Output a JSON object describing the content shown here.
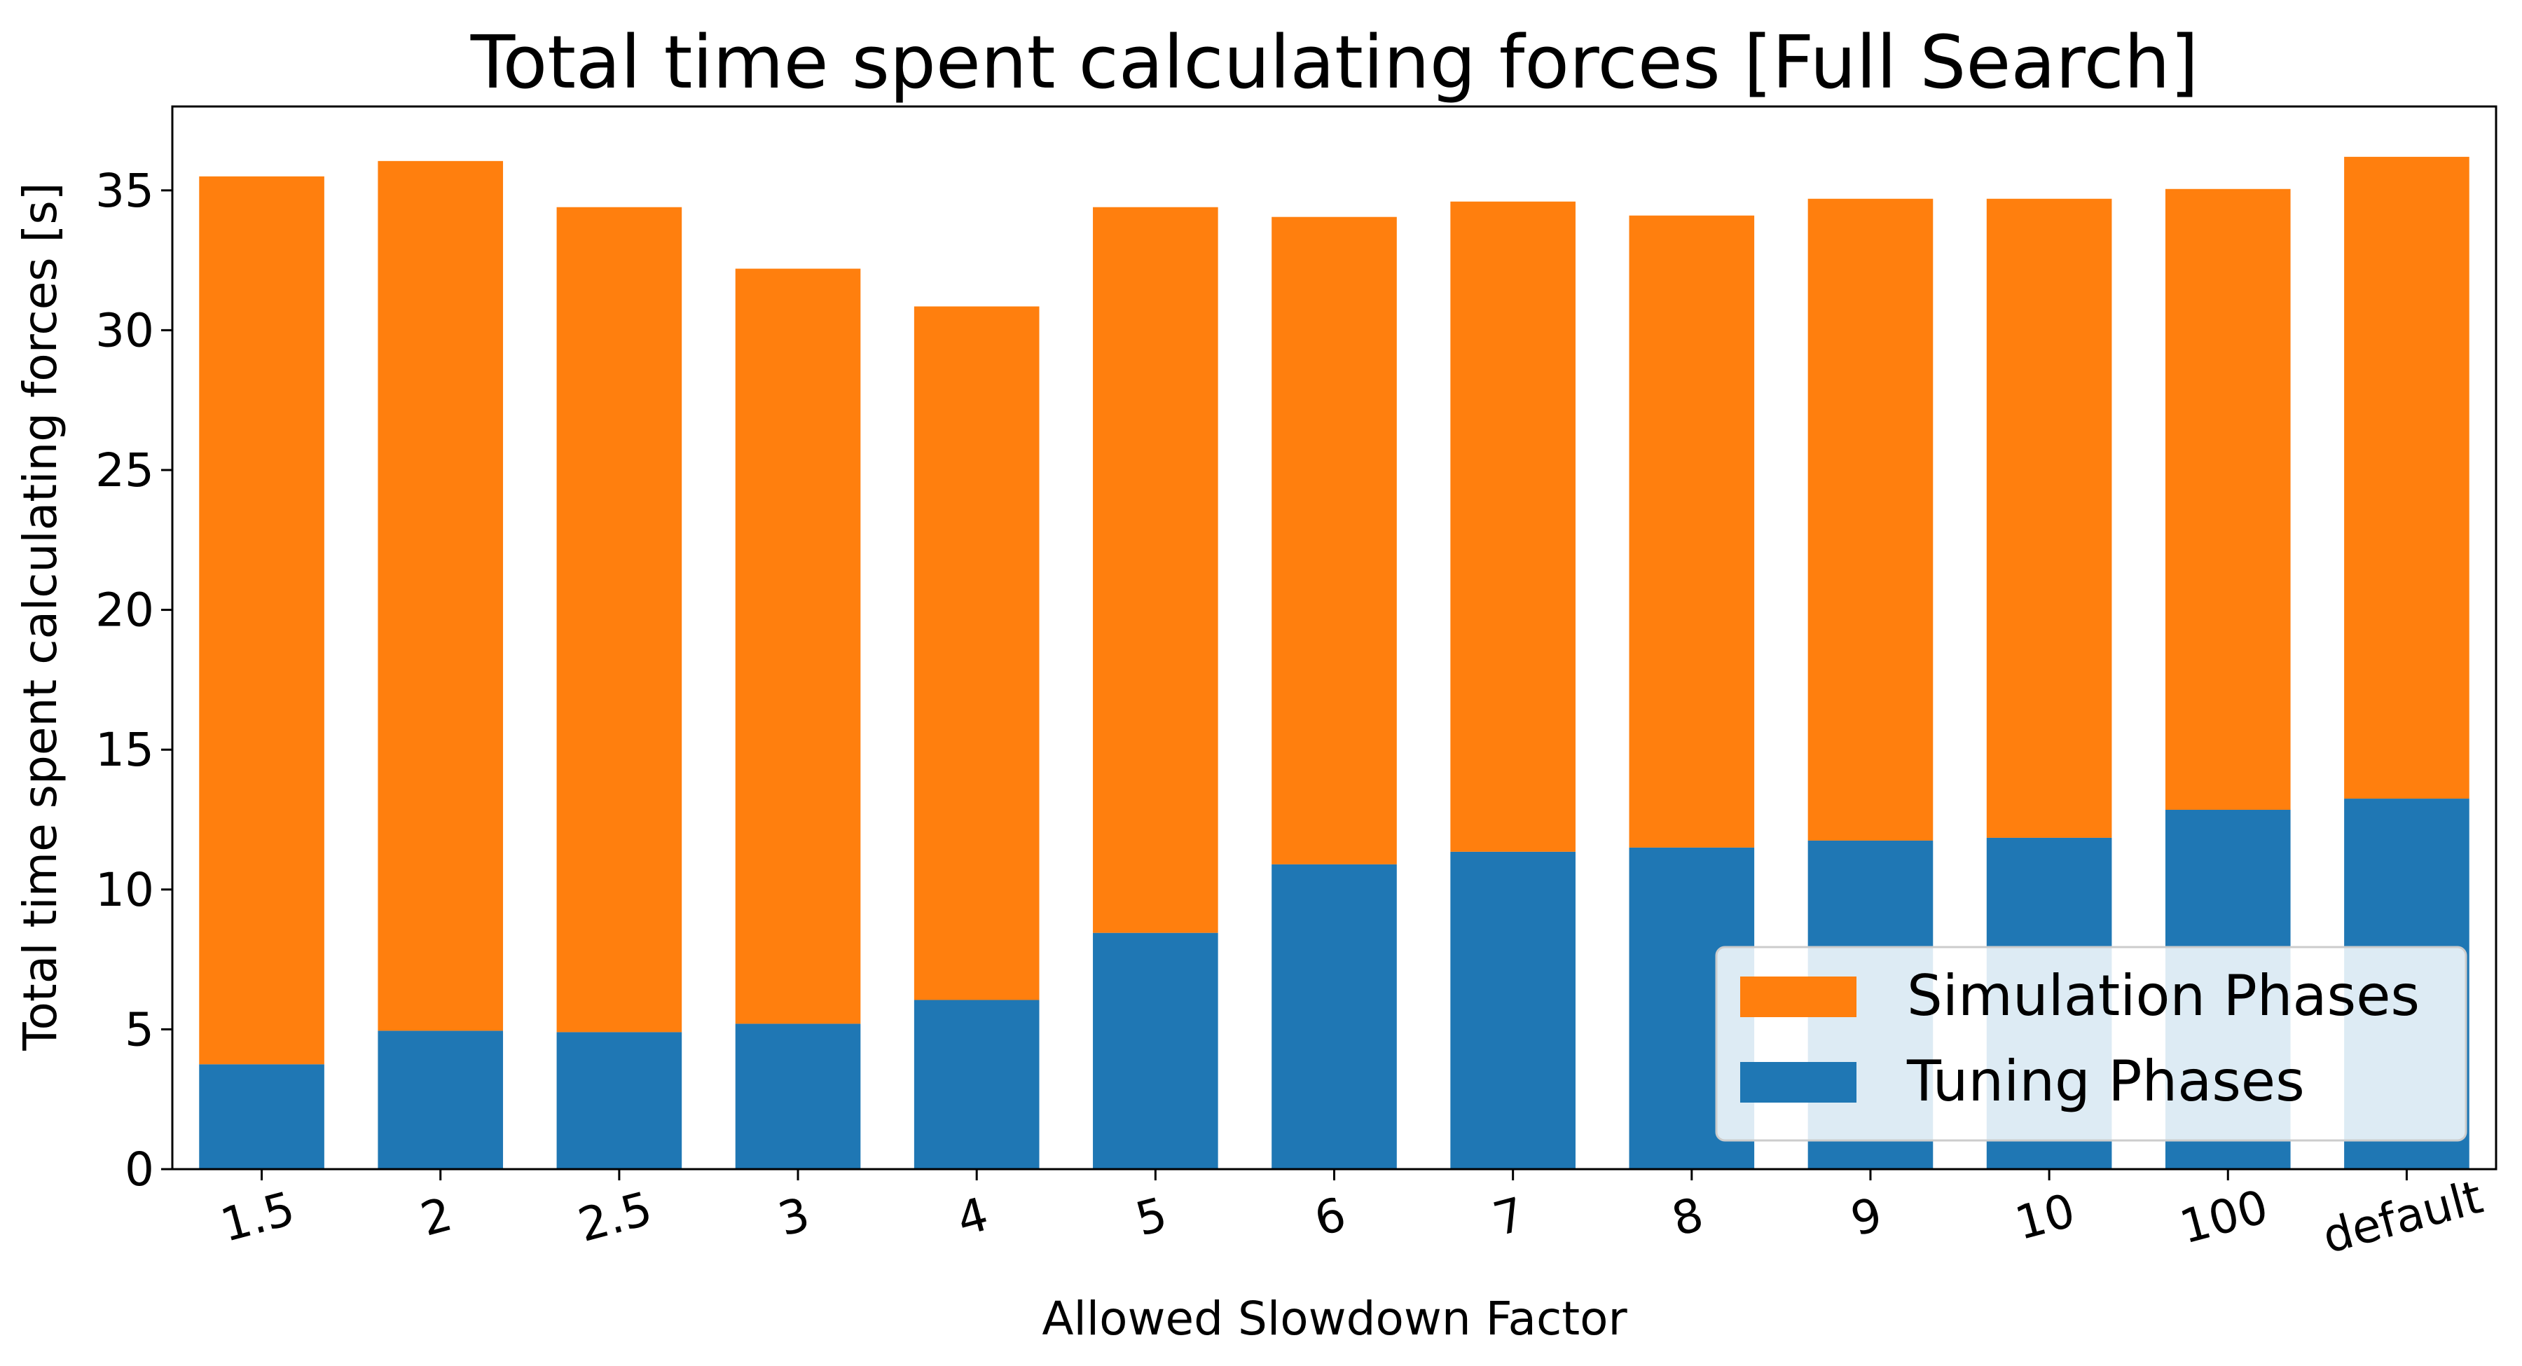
{
  "chart_data": {
    "type": "bar",
    "stacked": true,
    "title": "Total time spent calculating forces [Full Search]",
    "xlabel": "Allowed Slowdown Factor",
    "ylabel": "Total time spent calculating forces [s]",
    "categories": [
      "1.5",
      "2",
      "2.5",
      "3",
      "4",
      "5",
      "6",
      "7",
      "8",
      "9",
      "10",
      "100",
      "default"
    ],
    "ylim": [
      0,
      38
    ],
    "yticks": [
      0,
      5,
      10,
      15,
      20,
      25,
      30,
      35
    ],
    "series": [
      {
        "name": "Tuning Phases",
        "color": "#1f77b4",
        "values": [
          3.75,
          4.95,
          4.9,
          5.2,
          6.05,
          8.45,
          10.9,
          11.35,
          11.5,
          11.75,
          11.85,
          12.85,
          13.25
        ]
      },
      {
        "name": "Simulation Phases",
        "color": "#ff7f0e",
        "values": [
          31.75,
          31.1,
          29.5,
          27.0,
          24.8,
          25.95,
          23.15,
          23.25,
          22.6,
          22.95,
          22.85,
          22.2,
          22.95
        ]
      }
    ],
    "legend": {
      "position": "lower-right",
      "order": [
        "Simulation Phases",
        "Tuning Phases"
      ]
    },
    "grid": false
  }
}
